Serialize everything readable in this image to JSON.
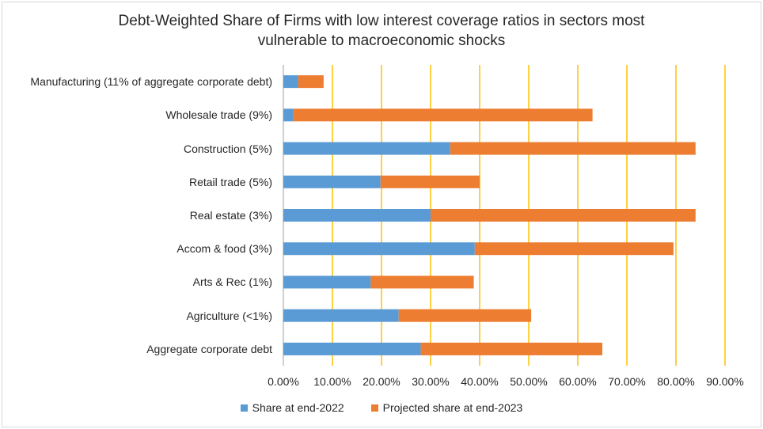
{
  "chart_data": {
    "type": "bar",
    "orientation": "horizontal",
    "stacked": true,
    "title_lines": [
      "Debt-Weighted Share of Firms with low interest coverage ratios in sectors most",
      "vulnerable to macroeconomic shocks"
    ],
    "categories": [
      "Manufacturing (11% of aggregate corporate debt)",
      "Wholesale trade (9%)",
      "Construction (5%)",
      "Retail trade (5%)",
      "Real estate (3%)",
      "Accom & food (3%)",
      "Arts & Rec (1%)",
      "Agriculture (<1%)",
      "Aggregate corporate debt"
    ],
    "series": [
      {
        "name": "Share at end-2022",
        "color": "#5b9bd5",
        "values": [
          3.0,
          2.0,
          34.0,
          19.8,
          30.0,
          39.0,
          17.8,
          23.5,
          28.0
        ]
      },
      {
        "name": "Projected share at end-2023",
        "color": "#ed7d31",
        "values": [
          5.2,
          61.0,
          50.0,
          20.2,
          54.0,
          40.5,
          21.0,
          27.0,
          37.0
        ]
      }
    ],
    "xlim": [
      0,
      90
    ],
    "xticks": [
      0,
      10,
      20,
      30,
      40,
      50,
      60,
      70,
      80,
      90
    ],
    "xtick_labels": [
      "0.00%",
      "10.00%",
      "20.00%",
      "30.00%",
      "40.00%",
      "50.00%",
      "60.00%",
      "70.00%",
      "80.00%",
      "90.00%"
    ],
    "gridline_color": "#ffc000",
    "legend_position": "bottom"
  }
}
